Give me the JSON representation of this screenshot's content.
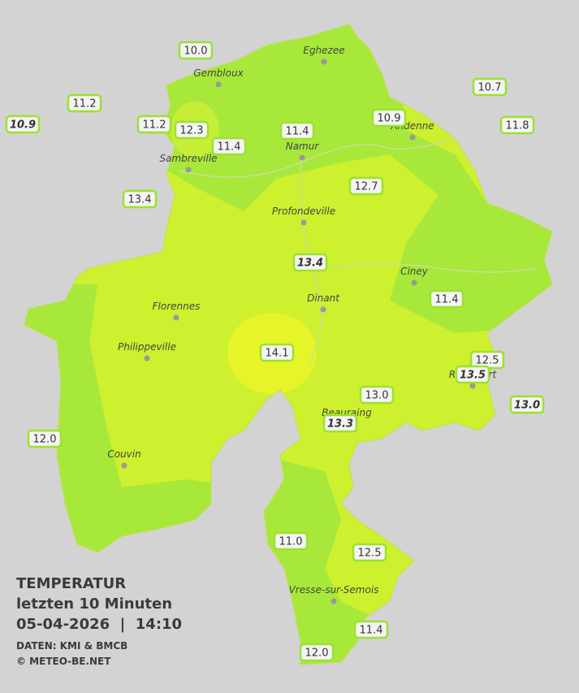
{
  "title": {
    "line1": "TEMPERATUR",
    "line2": "letzten 10 Minuten",
    "line3": "05-04-2026  |  14:10",
    "credit1": "DATEN: KMI & BMCB",
    "credit2": "© METEO-BE.NET"
  },
  "cities": [
    "Eghezee",
    "Gembloux",
    "Andenne",
    "Namur",
    "Sambreville",
    "Profondeville",
    "Ciney",
    "Dinant",
    "Florennes",
    "Philippeville",
    "Rochefort",
    "Beauraing",
    "Couvin",
    "Vresse-sur-Semois"
  ],
  "stations": [
    {
      "text": "10.0",
      "italic": false
    },
    {
      "text": "11.2",
      "italic": false
    },
    {
      "text": "10.9",
      "italic": true
    },
    {
      "text": "11.2",
      "italic": false
    },
    {
      "text": "12.3",
      "italic": false
    },
    {
      "text": "11.4",
      "italic": false
    },
    {
      "text": "11.4",
      "italic": false
    },
    {
      "text": "10.9",
      "italic": false
    },
    {
      "text": "10.7",
      "italic": false
    },
    {
      "text": "11.8",
      "italic": false
    },
    {
      "text": "13.4",
      "italic": false
    },
    {
      "text": "12.7",
      "italic": false
    },
    {
      "text": "13.4",
      "italic": true
    },
    {
      "text": "11.4",
      "italic": false
    },
    {
      "text": "14.1",
      "italic": false
    },
    {
      "text": "12.5",
      "italic": false
    },
    {
      "text": "13.5",
      "italic": true
    },
    {
      "text": "13.0",
      "italic": false
    },
    {
      "text": "13.0",
      "italic": true
    },
    {
      "text": "13.3",
      "italic": true
    },
    {
      "text": "12.0",
      "italic": false
    },
    {
      "text": "11.0",
      "italic": false
    },
    {
      "text": "12.5",
      "italic": false
    },
    {
      "text": "11.4",
      "italic": false
    },
    {
      "text": "12.0",
      "italic": false
    }
  ]
}
